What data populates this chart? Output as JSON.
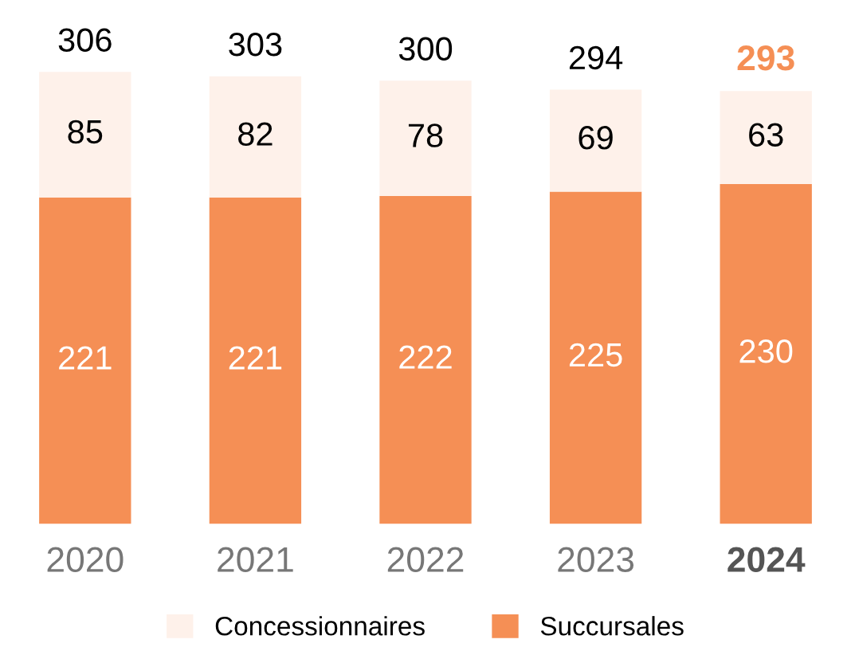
{
  "chart_data": {
    "type": "bar",
    "stacked": true,
    "categories": [
      "2020",
      "2021",
      "2022",
      "2023",
      "2024"
    ],
    "series": [
      {
        "name": "Succursales",
        "color": "#f58f55",
        "values": [
          221,
          221,
          222,
          225,
          230
        ]
      },
      {
        "name": "Concessionnaires",
        "color": "#fef1ea",
        "values": [
          85,
          82,
          78,
          69,
          63
        ]
      }
    ],
    "data_labels": true,
    "totals": [
      "306",
      "303",
      "300",
      "294",
      "293"
    ],
    "legend": "bottom",
    "grid": false
  }
}
